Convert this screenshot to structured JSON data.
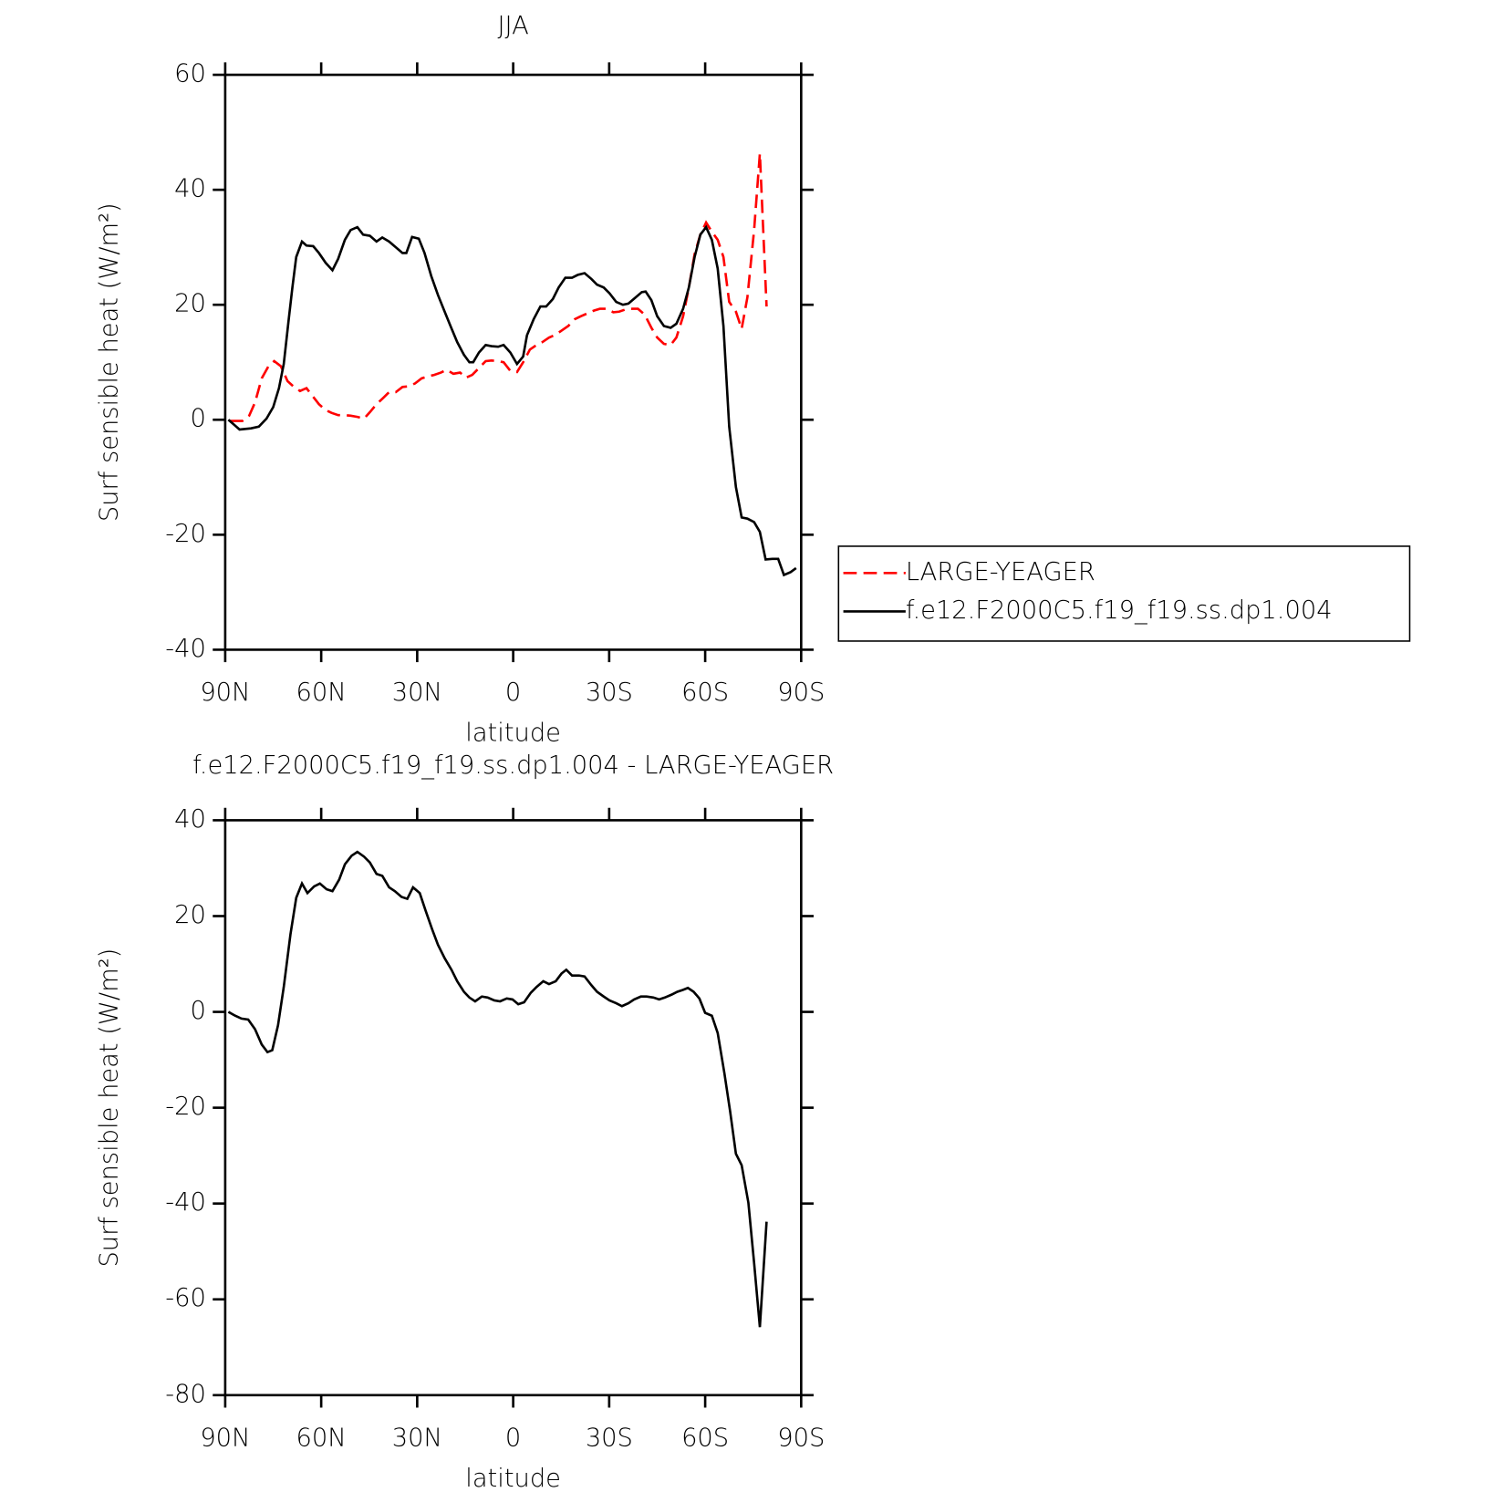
{
  "chart_data": [
    {
      "type": "line",
      "title": "JJA",
      "xlabel": "latitude",
      "ylabel": "Surf sensible heat (W/m²)",
      "xlim": [
        90,
        -90
      ],
      "xticks": [
        {
          "value": 90,
          "label": "90N"
        },
        {
          "value": 60,
          "label": "60N"
        },
        {
          "value": 30,
          "label": "30N"
        },
        0,
        {
          "value": -30,
          "label": "30S"
        },
        {
          "value": -60,
          "label": "60S"
        },
        {
          "value": -90,
          "label": "90S"
        }
      ],
      "ylim": [
        -40,
        60
      ],
      "yticks": [
        -40,
        -20,
        0,
        20,
        40,
        60
      ],
      "legend": "right",
      "series": [
        {
          "name": "LARGE-YEAGER",
          "color": "#ff0000",
          "dashed": true,
          "x": [
            88.5,
            84.6,
            82.5,
            80.7,
            78.6,
            76.5,
            74.7,
            72.6,
            70.5,
            68.7,
            66.6,
            64.6,
            62.8,
            60.7,
            58.6,
            56.8,
            54.7,
            52.6,
            50.8,
            48.7,
            46.6,
            44.8,
            42.7,
            40.6,
            38.8,
            36.7,
            34.6,
            32.8,
            30.7,
            28.6,
            26.8,
            24.7,
            22.6,
            20.8,
            18.7,
            16.6,
            14.8,
            12.8,
            10.7,
            8.6,
            6.8,
            4.7,
            3,
            0.9,
            -1.2,
            -3.1,
            -5.2,
            -7.3,
            -9.1,
            -11.2,
            -13.3,
            -15.1,
            -17.2,
            -19.3,
            -21.1,
            -23.2,
            -25.3,
            -27.1,
            -29.2,
            -31.3,
            -33.1,
            -35.2,
            -37.3,
            -39,
            -41.1,
            -43.2,
            -45,
            -47.1,
            -49.2,
            -51,
            -53.1,
            -54.9,
            -56.7,
            -58.5,
            -60.3,
            -62.1,
            -63.9,
            -65.7,
            -67.5,
            -69.6,
            -71.4,
            -73.2,
            -75.3,
            -77.1,
            -79.2
          ],
          "values": [
            -0.2,
            -0.2,
            0.7,
            3,
            7.2,
            9.3,
            10.2,
            9.3,
            6.7,
            5.8,
            5,
            5.5,
            4.2,
            2.7,
            1.7,
            1.2,
            0.8,
            0.8,
            0.7,
            0.5,
            0.2,
            1.3,
            2.7,
            3.8,
            4.8,
            4.8,
            5.7,
            5.8,
            6.3,
            7.2,
            7.5,
            7.8,
            8.2,
            8.7,
            8,
            8.2,
            7.3,
            7.8,
            9,
            10.2,
            10.3,
            10.2,
            10,
            8.5,
            8.3,
            10,
            12.2,
            13,
            13.5,
            14.3,
            14.8,
            15.5,
            16.3,
            17.5,
            18,
            18.5,
            19,
            19.3,
            19.3,
            18.7,
            18.8,
            19.2,
            19.3,
            19.3,
            18.3,
            16,
            14.3,
            13.2,
            13,
            14.3,
            18,
            23,
            28.8,
            32.2,
            34.3,
            32.7,
            31.3,
            28.3,
            20.5,
            18.8,
            15.8,
            21.3,
            33,
            46.3,
            19.7
          ]
        },
        {
          "name": "f.e12.F2000C5.f19_f19.ss.dp1.004",
          "color": "#000000",
          "dashed": false,
          "x": [
            89,
            85.5,
            81.9,
            79.5,
            77.1,
            75,
            73.2,
            71.7,
            70.2,
            69,
            67.8,
            66,
            64.6,
            62.5,
            60.7,
            58.6,
            56.5,
            54.7,
            52.6,
            50.8,
            48.7,
            46.9,
            44.8,
            42.7,
            40.9,
            38.8,
            36.7,
            34.6,
            33.4,
            31.6,
            29.5,
            27.7,
            25.6,
            23.5,
            21.4,
            19.6,
            17.5,
            15.4,
            13.7,
            12.5,
            10.7,
            8.6,
            6.8,
            4.7,
            3,
            0.9,
            -1.2,
            -3.1,
            -4.3,
            -6.4,
            -8.5,
            -10.3,
            -12.4,
            -14.2,
            -16.3,
            -18.4,
            -20.2,
            -22.3,
            -24.4,
            -26.2,
            -28.3,
            -30.1,
            -32.2,
            -34.3,
            -36,
            -38.1,
            -40.2,
            -41.4,
            -43.2,
            -45,
            -47.1,
            -49.2,
            -51,
            -53.1,
            -54.9,
            -56.7,
            -58.5,
            -60.3,
            -62.1,
            -63.9,
            -65.7,
            -67.5,
            -69.6,
            -71.4,
            -73.2,
            -75.3,
            -77.1,
            -78.9,
            -81,
            -82.8,
            -84.6,
            -86.7,
            -88.4
          ],
          "values": [
            0,
            -1.7,
            -1.5,
            -1.2,
            0.2,
            2.2,
            5.5,
            9.7,
            17.2,
            23,
            28.3,
            31,
            30.3,
            30.2,
            29,
            27.3,
            26,
            28,
            31.3,
            33,
            33.5,
            32.2,
            32,
            31,
            31.7,
            31,
            30,
            29,
            29,
            31.8,
            31.5,
            29,
            25,
            21.7,
            18.8,
            16.3,
            13.5,
            11.3,
            10,
            10,
            11.7,
            13,
            12.8,
            12.7,
            13,
            11.7,
            9.7,
            11,
            14.7,
            17.5,
            19.7,
            19.7,
            21,
            23,
            24.7,
            24.7,
            25.2,
            25.5,
            24.5,
            23.5,
            23,
            22,
            20.5,
            20,
            20.2,
            21.2,
            22.2,
            22.3,
            20.8,
            18,
            16.3,
            16,
            16.7,
            19.3,
            23,
            28.3,
            32.2,
            33.5,
            31.3,
            26.3,
            16.3,
            -1.2,
            -11.7,
            -17,
            -17.2,
            -17.8,
            -19.5,
            -24.3,
            -24.2,
            -24.2,
            -27,
            -26.5,
            -25.8
          ]
        }
      ]
    },
    {
      "type": "line",
      "title": "f.e12.F2000C5.f19_f19.ss.dp1.004 - LARGE-YEAGER",
      "xlabel": "latitude",
      "ylabel": "Surf sensible heat (W/m²)",
      "xlim": [
        90,
        -90
      ],
      "xticks": [
        {
          "value": 90,
          "label": "90N"
        },
        {
          "value": 60,
          "label": "60N"
        },
        {
          "value": 30,
          "label": "30N"
        },
        0,
        {
          "value": -30,
          "label": "30S"
        },
        {
          "value": -60,
          "label": "60S"
        },
        {
          "value": -90,
          "label": "90S"
        }
      ],
      "ylim": [
        -80,
        40
      ],
      "yticks": [
        -80,
        -60,
        -40,
        -20,
        0,
        20,
        40
      ],
      "series": [
        {
          "color": "#000000",
          "dashed": false,
          "x": [
            89,
            86.9,
            84.9,
            82.8,
            80.7,
            78.6,
            76.8,
            75.3,
            73.5,
            71.7,
            69.6,
            67.8,
            66,
            64.3,
            62.2,
            60.4,
            58.3,
            56.5,
            54.4,
            52.6,
            50.5,
            48.7,
            46.6,
            44.8,
            42.7,
            40.9,
            38.8,
            37,
            34.9,
            33.1,
            31.3,
            29.2,
            27.4,
            25.3,
            23.5,
            21.4,
            19.3,
            17.5,
            15.4,
            13.7,
            11.9,
            9.8,
            8,
            5.9,
            4.1,
            2,
            0.2,
            -1.6,
            -3.4,
            -5.5,
            -7.3,
            -9.4,
            -11.2,
            -13.3,
            -15.1,
            -16.6,
            -18.4,
            -20.5,
            -22.3,
            -24.4,
            -26.2,
            -28.3,
            -30.1,
            -32.2,
            -34,
            -36,
            -37.8,
            -39.9,
            -41.7,
            -43.8,
            -45.6,
            -47.4,
            -49.5,
            -51.3,
            -53.1,
            -54.6,
            -56.4,
            -58.2,
            -60,
            -62.1,
            -63.9,
            -66,
            -67.8,
            -69.6,
            -71.4,
            -73.5,
            -75.3,
            -77.1,
            -79.2
          ],
          "values": [
            0,
            -0.8,
            -1.4,
            -1.6,
            -3.6,
            -6.8,
            -8.4,
            -8,
            -2.8,
            5.2,
            16.2,
            23.8,
            26.8,
            24.8,
            26.2,
            26.8,
            25.6,
            25.2,
            27.6,
            30.8,
            32.6,
            33.4,
            32.4,
            31.2,
            28.8,
            28.4,
            26,
            25.2,
            24,
            23.6,
            26,
            24.8,
            21.2,
            17.2,
            14,
            11.2,
            8.8,
            6.4,
            4.2,
            3,
            2.2,
            3.2,
            3,
            2.4,
            2.2,
            2.8,
            2.6,
            1.6,
            2,
            4,
            5.2,
            6.4,
            5.8,
            6.4,
            8,
            8.8,
            7.6,
            7.6,
            7.4,
            5.6,
            4.2,
            3.2,
            2.4,
            1.8,
            1.2,
            1.8,
            2.6,
            3.2,
            3.2,
            3,
            2.6,
            3,
            3.6,
            4.2,
            4.6,
            5,
            4.2,
            2.8,
            -0.2,
            -0.8,
            -4.4,
            -12.8,
            -20.8,
            -29.6,
            -32,
            -39.8,
            -52.4,
            -65.8,
            -43.8
          ]
        }
      ]
    }
  ]
}
